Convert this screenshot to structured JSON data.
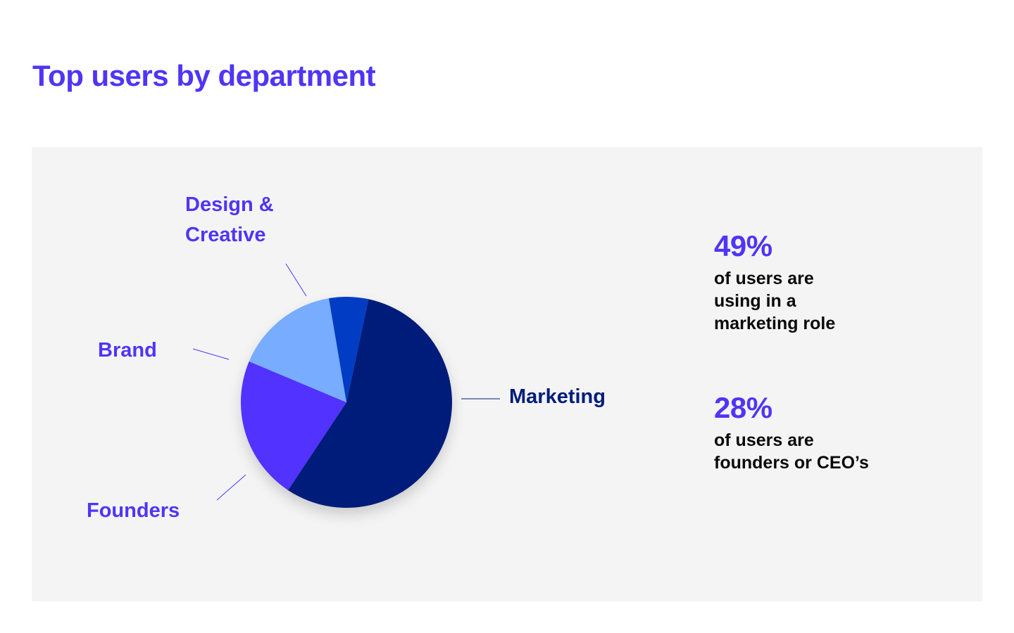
{
  "title": "Top users by department",
  "colors": {
    "accent": "#4f35f5",
    "panel_background": "#f4f4f5",
    "text_dark": "#0a0a0a"
  },
  "chart_data": {
    "type": "pie",
    "title": "Top users by department",
    "slices": [
      {
        "name": "Marketing",
        "value": 56,
        "color": "#001c7a",
        "label_color": "#001c7a",
        "label_lines": [
          "Marketing"
        ]
      },
      {
        "name": "Founders",
        "value": 22,
        "color": "#5133ff",
        "label_color": "#4f35f5",
        "label_lines": [
          "Founders"
        ]
      },
      {
        "name": "Brand",
        "value": 16,
        "color": "#77acff",
        "label_color": "#4f35f5",
        "label_lines": [
          "Brand"
        ]
      },
      {
        "name": "Design & Creative",
        "value": 6,
        "color": "#003ec4",
        "label_color": "#4f35f5",
        "label_lines": [
          "Design &",
          "Creative"
        ]
      }
    ]
  },
  "stats": [
    {
      "value": "49%",
      "lines": [
        "of users are",
        "using in a",
        "marketing role"
      ]
    },
    {
      "value": "28%",
      "lines": [
        "of users are",
        "founders or CEO’s"
      ]
    }
  ]
}
